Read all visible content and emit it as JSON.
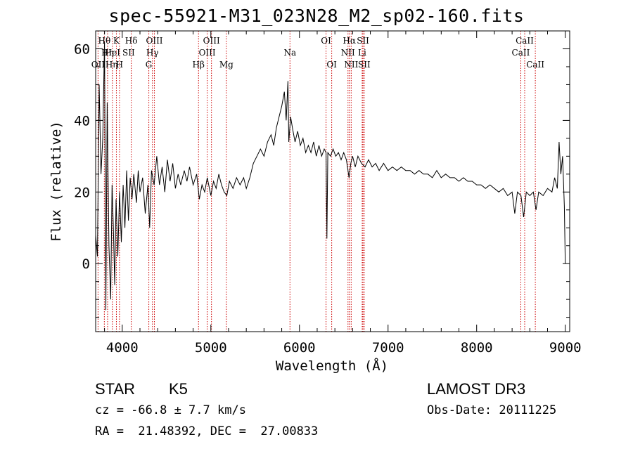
{
  "chart_data": {
    "type": "line",
    "title": "spec-55921-M31_023N28_M2_sp02-160.fits",
    "xlabel": "Wavelength (Å)",
    "ylabel": "Flux (relative)",
    "xlim": [
      3700,
      9050
    ],
    "ylim": [
      -19,
      65
    ],
    "xticks": [
      4000,
      5000,
      6000,
      7000,
      8000,
      9000
    ],
    "yticks": [
      0,
      20,
      40,
      60
    ],
    "series": [
      {
        "name": "flux",
        "color": "#000000",
        "points": [
          [
            3700,
            8
          ],
          [
            3720,
            2
          ],
          [
            3740,
            50
          ],
          [
            3760,
            25
          ],
          [
            3780,
            35
          ],
          [
            3800,
            62
          ],
          [
            3815,
            -13
          ],
          [
            3830,
            45
          ],
          [
            3850,
            5
          ],
          [
            3870,
            -10
          ],
          [
            3885,
            22
          ],
          [
            3900,
            10
          ],
          [
            3915,
            -6
          ],
          [
            3930,
            18
          ],
          [
            3950,
            2
          ],
          [
            3970,
            20
          ],
          [
            3990,
            6
          ],
          [
            4010,
            22
          ],
          [
            4030,
            10
          ],
          [
            4050,
            26
          ],
          [
            4070,
            12
          ],
          [
            4090,
            24
          ],
          [
            4110,
            18
          ],
          [
            4130,
            25
          ],
          [
            4160,
            17
          ],
          [
            4180,
            26
          ],
          [
            4200,
            20
          ],
          [
            4230,
            24
          ],
          [
            4260,
            14
          ],
          [
            4290,
            22
          ],
          [
            4310,
            10
          ],
          [
            4330,
            26
          ],
          [
            4360,
            22
          ],
          [
            4390,
            30
          ],
          [
            4420,
            22
          ],
          [
            4450,
            27
          ],
          [
            4480,
            20
          ],
          [
            4510,
            29
          ],
          [
            4540,
            23
          ],
          [
            4570,
            28
          ],
          [
            4600,
            21
          ],
          [
            4630,
            25
          ],
          [
            4660,
            22
          ],
          [
            4700,
            26
          ],
          [
            4730,
            23
          ],
          [
            4760,
            27
          ],
          [
            4800,
            22
          ],
          [
            4840,
            25
          ],
          [
            4870,
            18
          ],
          [
            4900,
            22
          ],
          [
            4930,
            20
          ],
          [
            4960,
            24
          ],
          [
            5000,
            19
          ],
          [
            5030,
            23
          ],
          [
            5060,
            21
          ],
          [
            5090,
            25
          ],
          [
            5120,
            22
          ],
          [
            5150,
            20
          ],
          [
            5180,
            19
          ],
          [
            5210,
            23
          ],
          [
            5250,
            21
          ],
          [
            5290,
            24
          ],
          [
            5330,
            22
          ],
          [
            5370,
            24
          ],
          [
            5400,
            21
          ],
          [
            5440,
            24
          ],
          [
            5480,
            28
          ],
          [
            5520,
            30
          ],
          [
            5560,
            32
          ],
          [
            5600,
            30
          ],
          [
            5640,
            34
          ],
          [
            5680,
            36
          ],
          [
            5710,
            33
          ],
          [
            5740,
            38
          ],
          [
            5770,
            41
          ],
          [
            5800,
            44
          ],
          [
            5830,
            48
          ],
          [
            5850,
            40
          ],
          [
            5870,
            51
          ],
          [
            5880,
            34
          ],
          [
            5900,
            41
          ],
          [
            5920,
            38
          ],
          [
            5950,
            34
          ],
          [
            5980,
            37
          ],
          [
            6010,
            33
          ],
          [
            6040,
            35
          ],
          [
            6070,
            31
          ],
          [
            6100,
            33
          ],
          [
            6130,
            31
          ],
          [
            6160,
            34
          ],
          [
            6190,
            30
          ],
          [
            6220,
            33
          ],
          [
            6250,
            30
          ],
          [
            6280,
            32
          ],
          [
            6300,
            31
          ],
          [
            6310,
            7
          ],
          [
            6320,
            31
          ],
          [
            6350,
            30
          ],
          [
            6380,
            32
          ],
          [
            6410,
            30
          ],
          [
            6440,
            31
          ],
          [
            6470,
            29
          ],
          [
            6500,
            31
          ],
          [
            6530,
            29
          ],
          [
            6560,
            24
          ],
          [
            6580,
            28
          ],
          [
            6600,
            30
          ],
          [
            6630,
            27
          ],
          [
            6660,
            30
          ],
          [
            6700,
            28
          ],
          [
            6740,
            27
          ],
          [
            6780,
            29
          ],
          [
            6820,
            27
          ],
          [
            6860,
            28
          ],
          [
            6900,
            26
          ],
          [
            6950,
            28
          ],
          [
            7000,
            26
          ],
          [
            7050,
            27
          ],
          [
            7100,
            26
          ],
          [
            7150,
            27
          ],
          [
            7200,
            26
          ],
          [
            7250,
            26
          ],
          [
            7300,
            25
          ],
          [
            7350,
            26
          ],
          [
            7400,
            25
          ],
          [
            7450,
            25
          ],
          [
            7500,
            24
          ],
          [
            7550,
            26
          ],
          [
            7600,
            24
          ],
          [
            7650,
            25
          ],
          [
            7700,
            24
          ],
          [
            7750,
            24
          ],
          [
            7800,
            23
          ],
          [
            7850,
            24
          ],
          [
            7900,
            23
          ],
          [
            7950,
            23
          ],
          [
            8000,
            22
          ],
          [
            8050,
            22
          ],
          [
            8100,
            21
          ],
          [
            8150,
            22
          ],
          [
            8200,
            21
          ],
          [
            8250,
            20
          ],
          [
            8300,
            21
          ],
          [
            8350,
            19
          ],
          [
            8400,
            20
          ],
          [
            8430,
            14
          ],
          [
            8460,
            20
          ],
          [
            8500,
            19
          ],
          [
            8530,
            13
          ],
          [
            8560,
            20
          ],
          [
            8600,
            19
          ],
          [
            8640,
            20
          ],
          [
            8670,
            15
          ],
          [
            8700,
            20
          ],
          [
            8750,
            19
          ],
          [
            8800,
            21
          ],
          [
            8850,
            20
          ],
          [
            8880,
            24
          ],
          [
            8910,
            21
          ],
          [
            8930,
            34
          ],
          [
            8950,
            25
          ],
          [
            8970,
            30
          ],
          [
            8990,
            16
          ],
          [
            9000,
            0
          ]
        ]
      }
    ],
    "lines": [
      {
        "wavelength": 3727,
        "color": "#cc0000"
      },
      {
        "wavelength": 3798,
        "color": "#cc0000"
      },
      {
        "wavelength": 3835,
        "color": "#cc0000"
      },
      {
        "wavelength": 3889,
        "color": "#cc0000"
      },
      {
        "wavelength": 3934,
        "color": "#cc0000"
      },
      {
        "wavelength": 3969,
        "color": "#cc0000"
      },
      {
        "wavelength": 4102,
        "color": "#cc0000"
      },
      {
        "wavelength": 4300,
        "color": "#cc0000"
      },
      {
        "wavelength": 4341,
        "color": "#cc0000"
      },
      {
        "wavelength": 4363,
        "color": "#cc0000"
      },
      {
        "wavelength": 4861,
        "color": "#cc0000"
      },
      {
        "wavelength": 4959,
        "color": "#cc0000"
      },
      {
        "wavelength": 5007,
        "color": "#cc0000"
      },
      {
        "wavelength": 5175,
        "color": "#cc0000"
      },
      {
        "wavelength": 5893,
        "color": "#cc0000"
      },
      {
        "wavelength": 6300,
        "color": "#cc0000"
      },
      {
        "wavelength": 6364,
        "color": "#cc0000"
      },
      {
        "wavelength": 6548,
        "color": "#cc0000"
      },
      {
        "wavelength": 6563,
        "color": "#cc0000"
      },
      {
        "wavelength": 6584,
        "color": "#cc0000"
      },
      {
        "wavelength": 6708,
        "color": "#cc0000"
      },
      {
        "wavelength": 6717,
        "color": "#cc0000"
      },
      {
        "wavelength": 6731,
        "color": "#cc0000"
      },
      {
        "wavelength": 8498,
        "color": "#cc0000"
      },
      {
        "wavelength": 8542,
        "color": "#cc0000"
      },
      {
        "wavelength": 8662,
        "color": "#cc0000"
      }
    ],
    "line_labels": [
      {
        "text": "Hθ",
        "wavelength": 3798,
        "row": 1
      },
      {
        "text": "OII",
        "wavelength": 3727,
        "row": 3
      },
      {
        "text": "Hη",
        "wavelength": 3835,
        "row": 2
      },
      {
        "text": "HeI",
        "wavelength": 3889,
        "row": 2
      },
      {
        "text": "Hη",
        "wavelength": 3880,
        "row": 3
      },
      {
        "text": "K",
        "wavelength": 3934,
        "row": 1
      },
      {
        "text": "SII",
        "wavelength": 4072,
        "row": 2
      },
      {
        "text": "H",
        "wavelength": 3969,
        "row": 3
      },
      {
        "text": "Hδ",
        "wavelength": 4102,
        "row": 1
      },
      {
        "text": "OIII",
        "wavelength": 4363,
        "row": 1
      },
      {
        "text": "Hγ",
        "wavelength": 4341,
        "row": 2
      },
      {
        "text": "G",
        "wavelength": 4300,
        "row": 3
      },
      {
        "text": "OIII",
        "wavelength": 5007,
        "row": 1
      },
      {
        "text": "OIII",
        "wavelength": 4959,
        "row": 2
      },
      {
        "text": "Hβ",
        "wavelength": 4861,
        "row": 3
      },
      {
        "text": "Mg",
        "wavelength": 5175,
        "row": 3
      },
      {
        "text": "Na",
        "wavelength": 5893,
        "row": 2
      },
      {
        "text": "OI",
        "wavelength": 6300,
        "row": 1
      },
      {
        "text": "OI",
        "wavelength": 6364,
        "row": 3
      },
      {
        "text": "Hα",
        "wavelength": 6563,
        "row": 1
      },
      {
        "text": "SII",
        "wavelength": 6717,
        "row": 1
      },
      {
        "text": "NII",
        "wavelength": 6548,
        "row": 2
      },
      {
        "text": "Li",
        "wavelength": 6708,
        "row": 2
      },
      {
        "text": "NII",
        "wavelength": 6584,
        "row": 3
      },
      {
        "text": "SII",
        "wavelength": 6731,
        "row": 3
      },
      {
        "text": "CaII",
        "wavelength": 8542,
        "row": 1
      },
      {
        "text": "CaII",
        "wavelength": 8498,
        "row": 2
      },
      {
        "text": "CaII",
        "wavelength": 8662,
        "row": 3
      }
    ]
  },
  "info": {
    "class": "STAR",
    "subclass": "K5",
    "survey": "LAMOST DR3",
    "cz": "cz = -66.8 ± 7.7 km/s",
    "obs_date": "Obs-Date: 20111225",
    "coords": "RA =  21.48392, DEC =  27.00833"
  }
}
